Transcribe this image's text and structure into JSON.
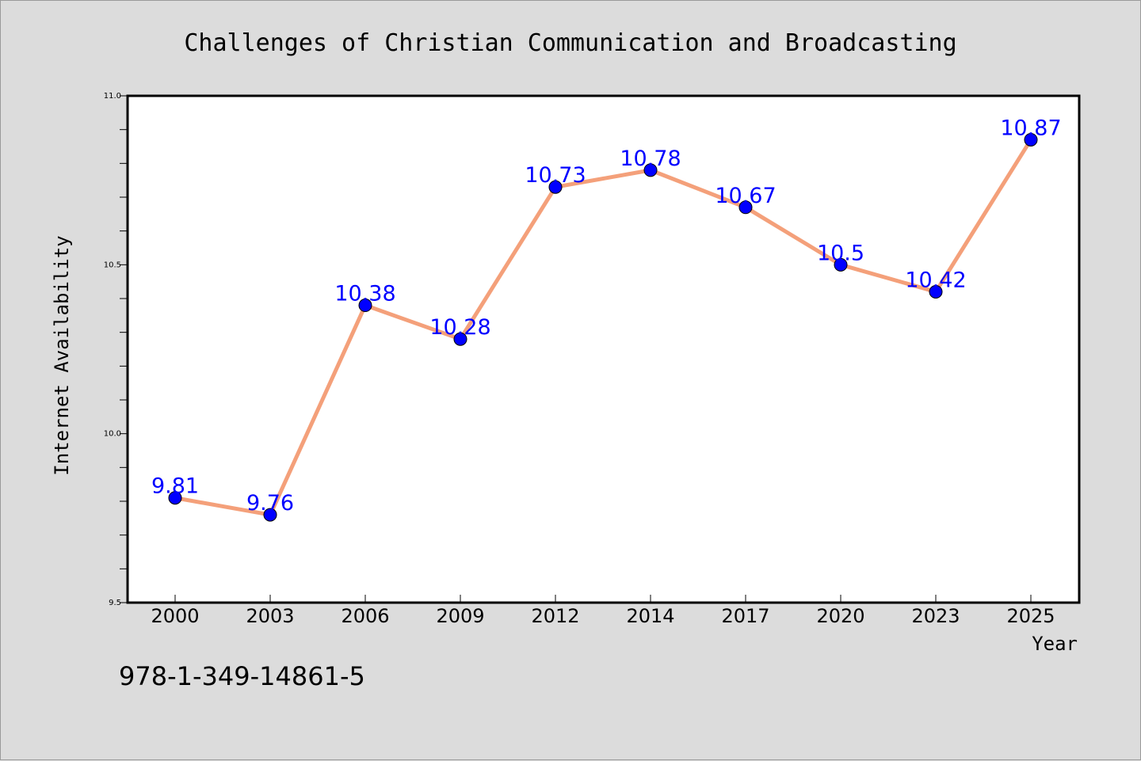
{
  "colors": {
    "background": "#dcdcdc",
    "plot_background": "#ffffff",
    "line": "#f4a07a",
    "marker": "#0000ff",
    "data_label": "#0000ff"
  },
  "footer": {
    "code": "978-1-349-14861-5"
  },
  "chart_data": {
    "type": "line",
    "title": "Challenges of Christian Communication and Broadcasting",
    "xlabel": "Year",
    "ylabel": "Internet Availability",
    "categories": [
      "2000",
      "2003",
      "2006",
      "2009",
      "2012",
      "2014",
      "2017",
      "2020",
      "2023",
      "2025"
    ],
    "series": [
      {
        "values": [
          9.81,
          9.76,
          10.38,
          10.28,
          10.73,
          10.78,
          10.67,
          10.5,
          10.42,
          10.87
        ],
        "data_labels": [
          "9.81",
          "9.76",
          "10.38",
          "10.28",
          "10.73",
          "10.78",
          "10.67",
          "10.5",
          "10.42",
          "10.87"
        ]
      }
    ],
    "ylim": [
      9.5,
      11.0
    ],
    "yticks": [
      "9.5",
      "10.0",
      "10.5",
      "11.0"
    ],
    "y_minor_step": 0.1,
    "grid": false,
    "legend": "none",
    "marker": "circle"
  }
}
